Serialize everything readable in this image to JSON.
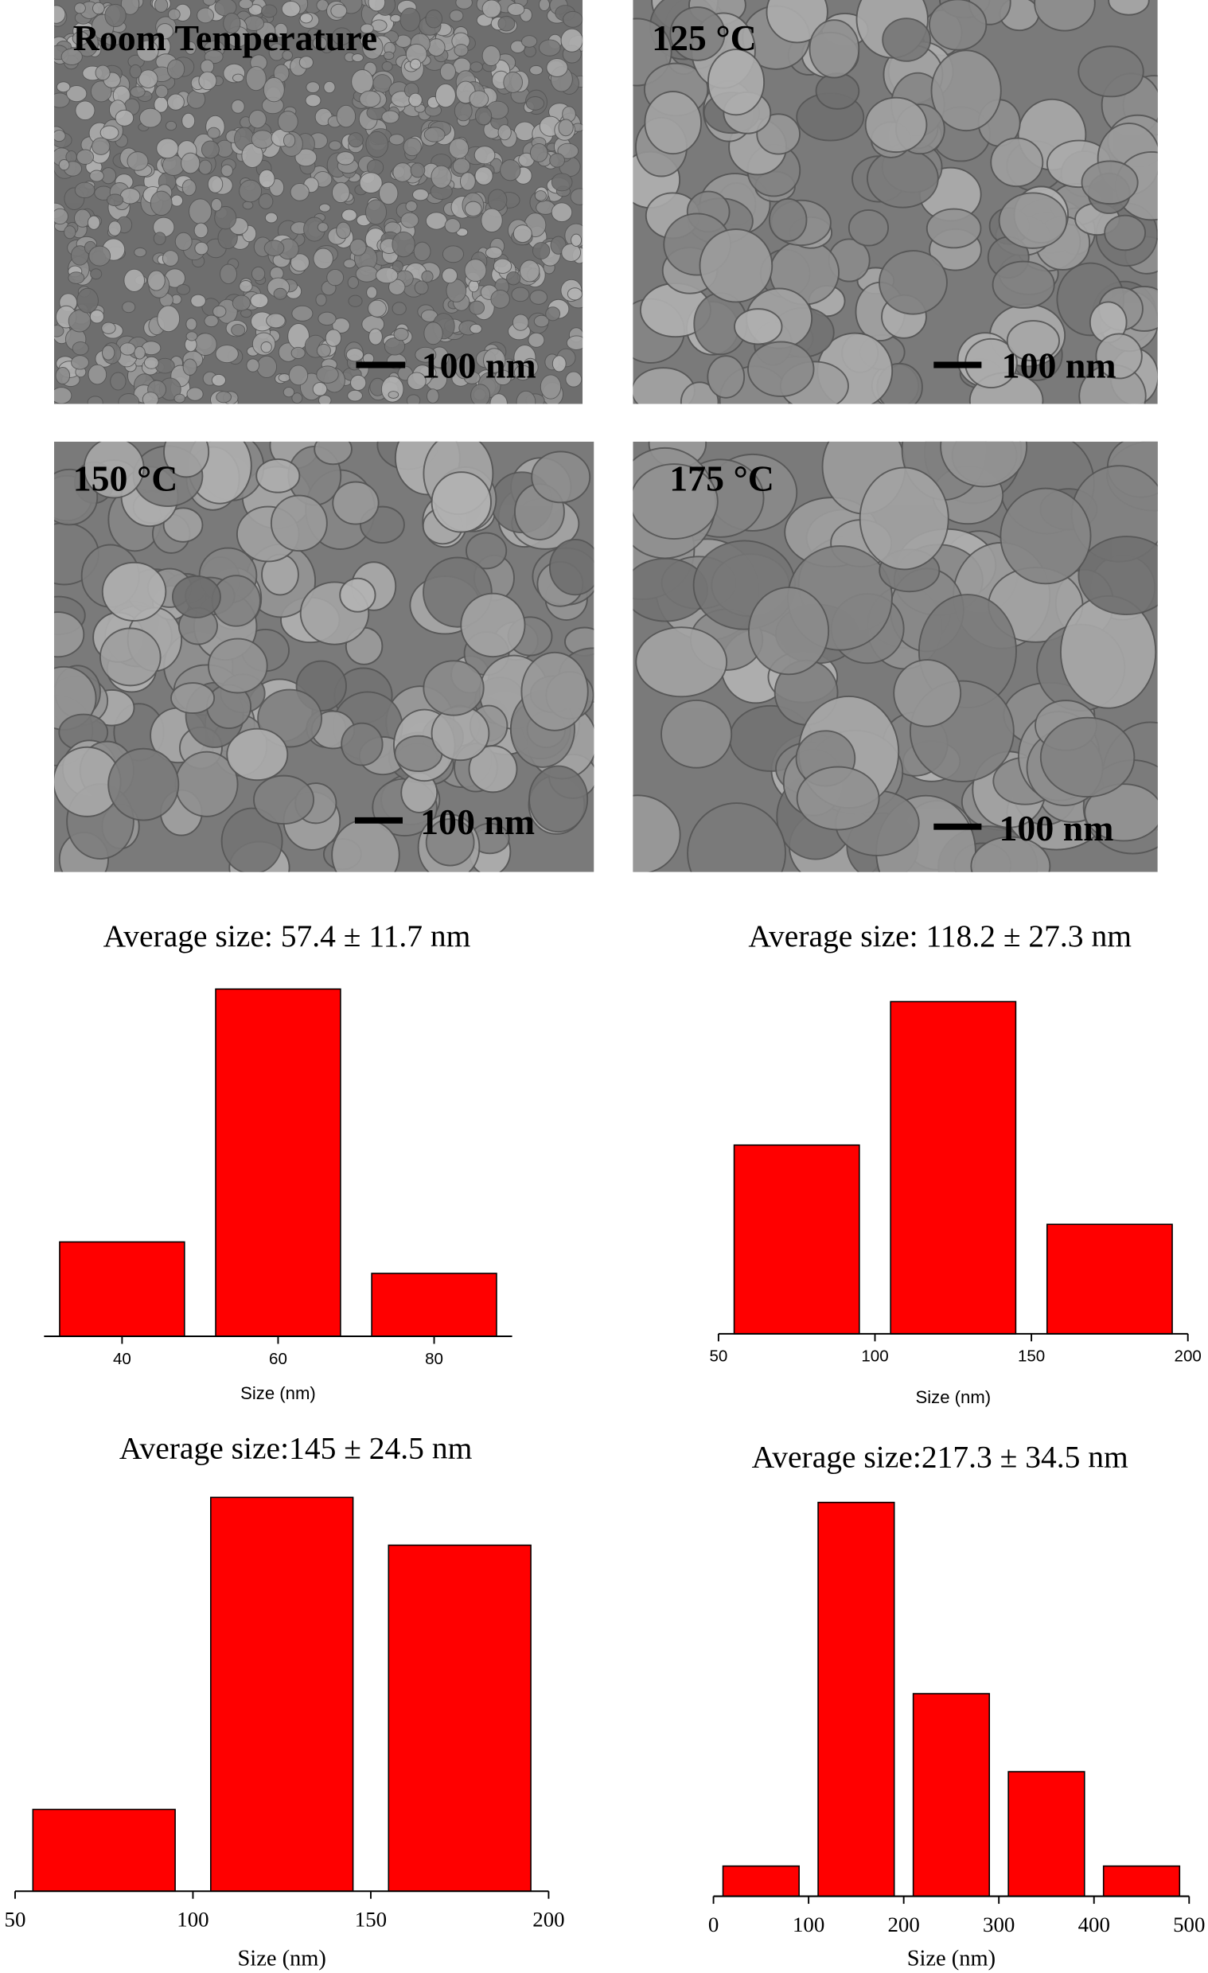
{
  "panels": [
    {
      "label": "Room Temperature",
      "scale_bar": "100 nm"
    },
    {
      "label": "125 °C",
      "scale_bar": "100 nm"
    },
    {
      "label": "150 °C",
      "scale_bar": "100 nm"
    },
    {
      "label": "175 °C",
      "scale_bar": "100 nm"
    }
  ],
  "chart_data": [
    {
      "type": "histogram",
      "title": "Average size: 57.4 ± 11.7 nm",
      "x_label": "Size (nm)",
      "bins": [
        30,
        50,
        70,
        90
      ],
      "values": [
        75,
        276,
        50
      ],
      "color": "#ff0000",
      "xlim": [
        30,
        90
      ],
      "xticks": [
        40,
        60,
        80
      ],
      "ylim": [
        0,
        285
      ]
    },
    {
      "type": "histogram",
      "title": "Average size: 118.2 ± 27.3 nm",
      "x_label": "Size (nm)",
      "bins": [
        50,
        100,
        150,
        200
      ],
      "values": [
        150,
        264,
        87
      ],
      "color": "#ff0000",
      "xlim": [
        50,
        200
      ],
      "xticks": [
        50,
        100,
        150,
        200
      ],
      "ylim": [
        0,
        275
      ]
    },
    {
      "type": "histogram",
      "title": "Average  size:145 ± 24.5 nm",
      "x_label": "Size (nm)",
      "bins": [
        50,
        100,
        150,
        200
      ],
      "values": [
        65,
        313,
        275
      ],
      "color": "#ff0000",
      "xlim": [
        50,
        200
      ],
      "xticks": [
        50,
        100,
        150,
        200
      ],
      "ylim": [
        0,
        320
      ]
    },
    {
      "type": "histogram",
      "title": "Average  size:217.3 ± 34.5 nm",
      "x_label": "Size (nm)",
      "bins": [
        0,
        100,
        200,
        300,
        400,
        500
      ],
      "values": [
        24,
        313,
        161,
        99,
        24
      ],
      "color": "#ff0000",
      "xlim": [
        0,
        500
      ],
      "xticks": [
        0,
        100,
        200,
        300,
        400,
        500
      ],
      "ylim": [
        0,
        320
      ]
    }
  ]
}
